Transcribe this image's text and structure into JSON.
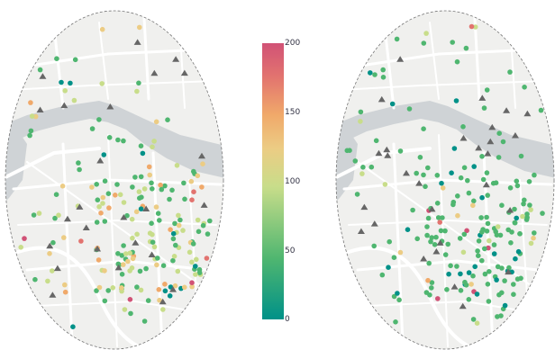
{
  "colorbar": {
    "ticks": [
      "200",
      "150",
      "100",
      "50",
      "0"
    ],
    "tick_values": [
      200,
      150,
      100,
      50,
      0
    ],
    "range": [
      0,
      200
    ],
    "colors": [
      "#009188",
      "#4fb670",
      "#c8dd8a",
      "#eccc84",
      "#f0a96a",
      "#e2736f",
      "#d15276"
    ]
  },
  "map_style": {
    "land": "#f0f0ee",
    "water": "#cfd3d6",
    "road": "#ffffff",
    "station_marker": "#666666",
    "icons": [
      "triangle-station-marker",
      "circle-sensor-marker"
    ]
  }
}
